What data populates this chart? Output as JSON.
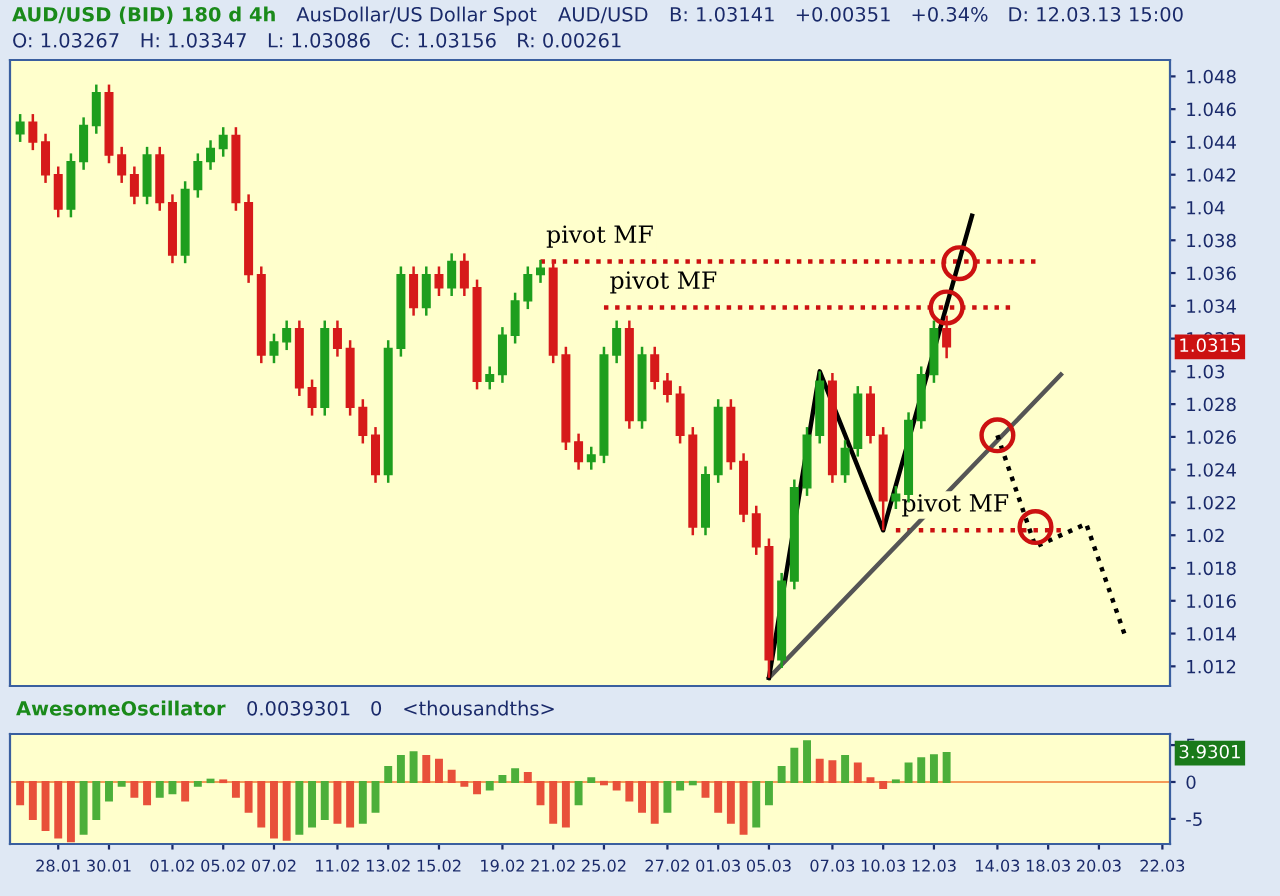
{
  "chart_data": [
    {
      "type": "candlestick",
      "title": "AUD/USD (BID) 180 d 4h",
      "subtitle": "AusDollar/US Dollar Spot",
      "categories": [
        null,
        null,
        null,
        "28.01",
        null,
        null,
        null,
        "30.01",
        null,
        null,
        null,
        null,
        "01.02",
        null,
        null,
        null,
        "05.02",
        null,
        null,
        null,
        "07.02",
        null,
        null,
        null,
        null,
        "11.02",
        null,
        null,
        null,
        "13.02",
        null,
        null,
        null,
        "15.02",
        null,
        null,
        null,
        null,
        "19.02",
        null,
        null,
        null,
        "21.02",
        null,
        null,
        null,
        "25.02",
        null,
        null,
        null,
        null,
        "27.02",
        null,
        null,
        null,
        "01.03",
        null,
        null,
        null,
        "05.03",
        null,
        null,
        null,
        null,
        "07.03",
        null,
        null,
        null,
        "10.03",
        null,
        null,
        null,
        "12.03",
        null,
        null,
        null,
        null,
        "14.03",
        null,
        null,
        null,
        "18.03",
        null,
        null,
        null,
        "20.03",
        null,
        null,
        null,
        null,
        "22.03"
      ],
      "ohlc": [
        [
          1.0445,
          1.0457,
          1.044,
          1.0452
        ],
        [
          1.0452,
          1.0457,
          1.0435,
          1.044
        ],
        [
          1.044,
          1.0445,
          1.0415,
          1.042
        ],
        [
          1.042,
          1.0425,
          1.0394,
          1.0399
        ],
        [
          1.0399,
          1.0433,
          1.0394,
          1.0428
        ],
        [
          1.0428,
          1.0455,
          1.0423,
          1.045
        ],
        [
          1.045,
          1.0475,
          1.0445,
          1.047
        ],
        [
          1.047,
          1.0475,
          1.0427,
          1.0432
        ],
        [
          1.0432,
          1.0437,
          1.0415,
          1.042
        ],
        [
          1.042,
          1.0425,
          1.0402,
          1.0407
        ],
        [
          1.0407,
          1.0437,
          1.0402,
          1.0432
        ],
        [
          1.0432,
          1.0437,
          1.0398,
          1.0403
        ],
        [
          1.0403,
          1.0408,
          1.0366,
          1.0371
        ],
        [
          1.0371,
          1.0416,
          1.0366,
          1.0411
        ],
        [
          1.0411,
          1.0433,
          1.0406,
          1.0428
        ],
        [
          1.0428,
          1.0441,
          1.0423,
          1.0436
        ],
        [
          1.0436,
          1.0449,
          1.0431,
          1.0444
        ],
        [
          1.0444,
          1.0449,
          1.0398,
          1.0403
        ],
        [
          1.0403,
          1.0408,
          1.0354,
          1.0359
        ],
        [
          1.0359,
          1.0364,
          1.0305,
          1.031
        ],
        [
          1.031,
          1.0323,
          1.0305,
          1.0318
        ],
        [
          1.0318,
          1.0331,
          1.0313,
          1.0326
        ],
        [
          1.0326,
          1.0331,
          1.0285,
          1.029
        ],
        [
          1.029,
          1.0295,
          1.0273,
          1.0278
        ],
        [
          1.0278,
          1.0331,
          1.0273,
          1.0326
        ],
        [
          1.0326,
          1.0331,
          1.0309,
          1.0314
        ],
        [
          1.0314,
          1.0319,
          1.0273,
          1.0278
        ],
        [
          1.0278,
          1.0283,
          1.0256,
          1.0261
        ],
        [
          1.0261,
          1.0266,
          1.0232,
          1.0237
        ],
        [
          1.0237,
          1.0319,
          1.0232,
          1.0314
        ],
        [
          1.0314,
          1.0364,
          1.0309,
          1.0359
        ],
        [
          1.0359,
          1.0364,
          1.0334,
          1.0339
        ],
        [
          1.0339,
          1.0364,
          1.0334,
          1.0359
        ],
        [
          1.0359,
          1.0364,
          1.0346,
          1.0351
        ],
        [
          1.0351,
          1.0372,
          1.0346,
          1.0367
        ],
        [
          1.0367,
          1.0372,
          1.0346,
          1.0351
        ],
        [
          1.0351,
          1.0356,
          1.0289,
          1.0294
        ],
        [
          1.0294,
          1.0303,
          1.0289,
          1.0298
        ],
        [
          1.0298,
          1.0327,
          1.0293,
          1.0322
        ],
        [
          1.0322,
          1.0348,
          1.0317,
          1.0343
        ],
        [
          1.0343,
          1.0364,
          1.0338,
          1.0359
        ],
        [
          1.0359,
          1.0368,
          1.0354,
          1.0363
        ],
        [
          1.0363,
          1.0368,
          1.0305,
          1.031
        ],
        [
          1.031,
          1.0315,
          1.0252,
          1.0257
        ],
        [
          1.0257,
          1.0262,
          1.024,
          1.0245
        ],
        [
          1.0245,
          1.0254,
          1.024,
          1.0249
        ],
        [
          1.0249,
          1.0315,
          1.0244,
          1.031
        ],
        [
          1.031,
          1.0331,
          1.0305,
          1.0326
        ],
        [
          1.0326,
          1.0331,
          1.0265,
          1.027
        ],
        [
          1.027,
          1.0315,
          1.0265,
          1.031
        ],
        [
          1.031,
          1.0315,
          1.0289,
          1.0294
        ],
        [
          1.0294,
          1.0299,
          1.0281,
          1.0286
        ],
        [
          1.0286,
          1.0291,
          1.0256,
          1.0261
        ],
        [
          1.0261,
          1.0266,
          1.02,
          1.0205
        ],
        [
          1.0205,
          1.0242,
          1.02,
          1.0237
        ],
        [
          1.0237,
          1.0283,
          1.0232,
          1.0278
        ],
        [
          1.0278,
          1.0283,
          1.024,
          1.0245
        ],
        [
          1.0245,
          1.025,
          1.0208,
          1.0213
        ],
        [
          1.0213,
          1.0218,
          1.0188,
          1.0193
        ],
        [
          1.0193,
          1.0198,
          1.0113,
          1.0124
        ],
        [
          1.0124,
          1.0177,
          1.0119,
          1.0172
        ],
        [
          1.0172,
          1.0234,
          1.0167,
          1.0229
        ],
        [
          1.0229,
          1.0266,
          1.0224,
          1.0261
        ],
        [
          1.0261,
          1.03,
          1.0256,
          1.0294
        ],
        [
          1.0294,
          1.0299,
          1.0232,
          1.0237
        ],
        [
          1.0237,
          1.0258,
          1.0232,
          1.0253
        ],
        [
          1.0253,
          1.0291,
          1.0248,
          1.0286
        ],
        [
          1.0286,
          1.0291,
          1.0256,
          1.0261
        ],
        [
          1.0261,
          1.0266,
          1.0203,
          1.0221
        ],
        [
          1.0221,
          1.023,
          1.0216,
          1.0225
        ],
        [
          1.0225,
          1.0275,
          1.022,
          1.027
        ],
        [
          1.027,
          1.0303,
          1.0265,
          1.0298
        ],
        [
          1.0298,
          1.0331,
          1.0293,
          1.0326
        ],
        [
          1.0326,
          1.0334,
          1.0308,
          1.0315
        ],
        null,
        null,
        null,
        null,
        null,
        null,
        null,
        null,
        null,
        null,
        null,
        null,
        null,
        null,
        null,
        null,
        null
      ],
      "colors": [
        "#1e9e1e",
        "#d61a1a",
        "#d61a1a",
        "#d61a1a",
        "#1e9e1e",
        "#1e9e1e",
        "#1e9e1e",
        "#d61a1a",
        "#d61a1a",
        "#d61a1a",
        "#1e9e1e",
        "#d61a1a",
        "#d61a1a",
        "#1e9e1e",
        "#1e9e1e",
        "#1e9e1e",
        "#1e9e1e",
        "#d61a1a",
        "#d61a1a",
        "#d61a1a",
        "#1e9e1e",
        "#1e9e1e",
        "#d61a1a",
        "#d61a1a",
        "#1e9e1e",
        "#d61a1a",
        "#d61a1a",
        "#d61a1a",
        "#d61a1a",
        "#1e9e1e",
        "#1e9e1e",
        "#d61a1a",
        "#1e9e1e",
        "#d61a1a",
        "#1e9e1e",
        "#d61a1a",
        "#d61a1a",
        "#1e9e1e",
        "#1e9e1e",
        "#1e9e1e",
        "#1e9e1e",
        "#1e9e1e",
        "#d61a1a",
        "#d61a1a",
        "#d61a1a",
        "#1e9e1e",
        "#1e9e1e",
        "#1e9e1e",
        "#d61a1a",
        "#1e9e1e",
        "#d61a1a",
        "#d61a1a",
        "#d61a1a",
        "#d61a1a",
        "#1e9e1e",
        "#1e9e1e",
        "#d61a1a",
        "#d61a1a",
        "#d61a1a",
        "#d61a1a",
        "#1e9e1e",
        "#1e9e1e",
        "#1e9e1e",
        "#1e9e1e",
        "#d61a1a",
        "#1e9e1e",
        "#1e9e1e",
        "#d61a1a",
        "#d61a1a",
        "#1e9e1e",
        "#1e9e1e",
        "#1e9e1e",
        "#1e9e1e",
        "#d61a1a",
        null,
        null,
        null,
        null,
        null,
        null,
        null,
        null,
        null,
        null,
        null,
        null,
        null,
        null,
        null,
        null,
        null
      ],
      "series": [
        {
          "type": "line",
          "name": "pivot MF",
          "color": "#cc1111",
          "line_style": "dotted",
          "values": [
            null,
            null,
            null,
            null,
            null,
            null,
            null,
            null,
            null,
            null,
            null,
            null,
            null,
            null,
            null,
            null,
            null,
            null,
            null,
            null,
            null,
            null,
            null,
            null,
            null,
            null,
            null,
            null,
            null,
            null,
            null,
            null,
            null,
            null,
            null,
            null,
            null,
            null,
            null,
            null,
            null,
            1.0367,
            null,
            null,
            null,
            null,
            null,
            null,
            null,
            null,
            null,
            null,
            null,
            null,
            null,
            null,
            null,
            null,
            null,
            null,
            null,
            null,
            null,
            null,
            null,
            null,
            null,
            null,
            null,
            null,
            null,
            null,
            null,
            null,
            null,
            null,
            null,
            null,
            null,
            null,
            1.0367,
            null,
            null,
            null,
            null,
            null,
            null,
            null,
            null,
            null,
            null
          ]
        },
        {
          "type": "line",
          "name": "pivot MF",
          "color": "#cc1111",
          "line_style": "dotted",
          "values": [
            null,
            null,
            null,
            null,
            null,
            null,
            null,
            null,
            null,
            null,
            null,
            null,
            null,
            null,
            null,
            null,
            null,
            null,
            null,
            null,
            null,
            null,
            null,
            null,
            null,
            null,
            null,
            null,
            null,
            null,
            null,
            null,
            null,
            null,
            null,
            null,
            null,
            null,
            null,
            null,
            null,
            null,
            null,
            null,
            null,
            null,
            1.0339,
            null,
            null,
            null,
            null,
            null,
            null,
            null,
            null,
            null,
            null,
            null,
            null,
            null,
            null,
            null,
            null,
            null,
            null,
            null,
            null,
            null,
            null,
            null,
            null,
            null,
            null,
            null,
            null,
            null,
            null,
            null,
            1.0339,
            null,
            null,
            null,
            null,
            null,
            null,
            null,
            null,
            null,
            null,
            null,
            null
          ]
        },
        {
          "type": "line",
          "name": "pivot MF",
          "color": "#cc1111",
          "line_style": "dotted",
          "values": [
            null,
            null,
            null,
            null,
            null,
            null,
            null,
            null,
            null,
            null,
            null,
            null,
            null,
            null,
            null,
            null,
            null,
            null,
            null,
            null,
            null,
            null,
            null,
            null,
            null,
            null,
            null,
            null,
            null,
            null,
            null,
            null,
            null,
            null,
            null,
            null,
            null,
            null,
            null,
            null,
            null,
            null,
            null,
            null,
            null,
            null,
            null,
            null,
            null,
            null,
            null,
            null,
            null,
            null,
            null,
            null,
            null,
            null,
            null,
            null,
            null,
            null,
            null,
            null,
            null,
            null,
            null,
            null,
            null,
            1.0203,
            null,
            null,
            null,
            null,
            null,
            null,
            null,
            null,
            null,
            null,
            null,
            null,
            1.0203,
            null,
            null,
            null,
            null,
            null,
            null,
            null,
            null
          ]
        },
        {
          "type": "line",
          "color": "#555555",
          "line_style": "solid",
          "values": [
            null,
            null,
            null,
            null,
            null,
            null,
            null,
            null,
            null,
            null,
            null,
            null,
            null,
            null,
            null,
            null,
            null,
            null,
            null,
            null,
            null,
            null,
            null,
            null,
            null,
            null,
            null,
            null,
            null,
            null,
            null,
            null,
            null,
            null,
            null,
            null,
            null,
            null,
            null,
            null,
            null,
            null,
            null,
            null,
            null,
            null,
            null,
            null,
            null,
            null,
            null,
            null,
            null,
            null,
            null,
            null,
            null,
            null,
            null,
            1.0113,
            null,
            null,
            null,
            null,
            null,
            null,
            null,
            null,
            null,
            null,
            null,
            null,
            null,
            null,
            null,
            null,
            null,
            null,
            null,
            null,
            null,
            null,
            1.0298,
            null,
            null,
            null,
            null,
            null,
            null,
            null,
            null
          ]
        },
        {
          "type": "line",
          "color": "#000000",
          "line_style": "solid",
          "values": [
            null,
            null,
            null,
            null,
            null,
            null,
            null,
            null,
            null,
            null,
            null,
            null,
            null,
            null,
            null,
            null,
            null,
            null,
            null,
            null,
            null,
            null,
            null,
            null,
            null,
            null,
            null,
            null,
            null,
            null,
            null,
            null,
            null,
            null,
            null,
            null,
            null,
            null,
            null,
            null,
            null,
            null,
            null,
            null,
            null,
            null,
            null,
            null,
            null,
            null,
            null,
            null,
            null,
            null,
            null,
            null,
            null,
            null,
            null,
            1.0113,
            null,
            null,
            null,
            1.03,
            null,
            null,
            null,
            null,
            1.0203,
            null,
            null,
            null,
            null,
            null,
            null,
            1.0395,
            null,
            null,
            null,
            null,
            null,
            null,
            null,
            null,
            null,
            null,
            null,
            null,
            null,
            null,
            null
          ]
        },
        {
          "type": "line",
          "color": "#000000",
          "line_style": "dotted",
          "values": [
            null,
            null,
            null,
            null,
            null,
            null,
            null,
            null,
            null,
            null,
            null,
            null,
            null,
            null,
            null,
            null,
            null,
            null,
            null,
            null,
            null,
            null,
            null,
            null,
            null,
            null,
            null,
            null,
            null,
            null,
            null,
            null,
            null,
            null,
            null,
            null,
            null,
            null,
            null,
            null,
            null,
            null,
            null,
            null,
            null,
            null,
            null,
            null,
            null,
            null,
            null,
            null,
            null,
            null,
            null,
            null,
            null,
            null,
            null,
            null,
            null,
            null,
            null,
            null,
            null,
            null,
            null,
            null,
            null,
            null,
            null,
            null,
            null,
            null,
            null,
            null,
            null,
            1.0261,
            null,
            null,
            1.0193,
            null,
            null,
            null,
            1.0207,
            null,
            null,
            1.014,
            null,
            null,
            null
          ]
        },
        {
          "type": "scatter",
          "color": "#cc1111",
          "marker": "circle",
          "values": [
            null,
            null,
            null,
            null,
            null,
            null,
            null,
            null,
            null,
            null,
            null,
            null,
            null,
            null,
            null,
            null,
            null,
            null,
            null,
            null,
            null,
            null,
            null,
            null,
            null,
            null,
            null,
            null,
            null,
            null,
            null,
            null,
            null,
            null,
            null,
            null,
            null,
            null,
            null,
            null,
            null,
            null,
            null,
            null,
            null,
            null,
            null,
            null,
            null,
            null,
            null,
            null,
            null,
            null,
            null,
            null,
            null,
            null,
            null,
            null,
            null,
            null,
            null,
            null,
            null,
            null,
            null,
            null,
            null,
            null,
            null,
            null,
            null,
            1.0339,
            1.0366,
            null,
            null,
            1.0261,
            null,
            null,
            1.0205,
            null,
            null,
            null,
            null,
            null,
            null,
            null,
            null,
            null,
            null
          ]
        }
      ],
      "ylim": [
        1.0108,
        1.049
      ],
      "yticks": [
        1.012,
        1.014,
        1.016,
        1.018,
        1.02,
        1.022,
        1.024,
        1.026,
        1.028,
        1.03,
        1.032,
        1.034,
        1.036,
        1.038,
        1.04,
        1.042,
        1.044,
        1.046,
        1.048
      ],
      "tick_labels": "y",
      "annotations": [
        "AUD/USD",
        "B: 1.03141",
        "+0.00351",
        "+0.34%",
        "D: 12.03.13 15:00",
        "O: 1.03267",
        "H: 1.03347",
        "L: 1.03086",
        "C: 1.03156",
        "R: 0.00261",
        {
          "text": "1.0315",
          "y": 1.0315
        }
      ]
    },
    {
      "type": "bar",
      "title": "AwesomeOscillator",
      "categories": [
        null,
        null,
        null,
        "28.01",
        null,
        null,
        null,
        "30.01",
        null,
        null,
        null,
        null,
        "01.02",
        null,
        null,
        null,
        "05.02",
        null,
        null,
        null,
        "07.02",
        null,
        null,
        null,
        null,
        "11.02",
        null,
        null,
        null,
        "13.02",
        null,
        null,
        null,
        "15.02",
        null,
        null,
        null,
        null,
        "19.02",
        null,
        null,
        null,
        "21.02",
        null,
        null,
        null,
        "25.02",
        null,
        null,
        null,
        null,
        "27.02",
        null,
        null,
        null,
        "01.03",
        null,
        null,
        null,
        "05.03",
        null,
        null,
        null,
        null,
        "07.03",
        null,
        null,
        null,
        "10.03",
        null,
        null,
        null,
        "12.03",
        null,
        null,
        null,
        null,
        "14.03",
        null,
        null,
        null,
        "18.03",
        null,
        null,
        null,
        "20.03",
        null,
        null,
        null,
        null,
        "22.03"
      ],
      "values": [
        -3,
        -5,
        -6.5,
        -7.5,
        -8,
        -7,
        -5,
        -2.5,
        -0.5,
        -2,
        -3,
        -2,
        -1.5,
        -2.5,
        -0.5,
        0.3,
        0.2,
        -2,
        -4,
        -6,
        -7.5,
        -7.8,
        -7,
        -6,
        -5,
        -5.5,
        -6,
        -5.5,
        -4,
        2,
        3.5,
        4,
        3.5,
        3,
        1.5,
        -0.5,
        -1.5,
        -1,
        0.8,
        1.7,
        1.2,
        -3,
        -5.5,
        -6,
        -3,
        0.5,
        -0.3,
        -1,
        -2.5,
        -4,
        -5.5,
        -4,
        -1,
        -0.3,
        -2,
        -4,
        -5.5,
        -7,
        -6,
        -3,
        2,
        4.5,
        5.5,
        3,
        2.8,
        3.5,
        2.5,
        0.5,
        -0.8,
        0.2,
        2.5,
        3.2,
        3.6,
        3.9,
        null,
        null,
        null,
        null,
        null,
        null,
        null,
        null,
        null,
        null,
        null,
        null,
        null,
        null,
        null,
        null,
        null
      ],
      "colors": [
        "#e8503a",
        "#e8503a",
        "#e8503a",
        "#e8503a",
        "#e8503a",
        "#4caf3a",
        "#4caf3a",
        "#4caf3a",
        "#4caf3a",
        "#e8503a",
        "#e8503a",
        "#4caf3a",
        "#4caf3a",
        "#e8503a",
        "#4caf3a",
        "#4caf3a",
        "#e8503a",
        "#e8503a",
        "#e8503a",
        "#e8503a",
        "#e8503a",
        "#e8503a",
        "#4caf3a",
        "#4caf3a",
        "#4caf3a",
        "#e8503a",
        "#e8503a",
        "#4caf3a",
        "#4caf3a",
        "#4caf3a",
        "#4caf3a",
        "#4caf3a",
        "#e8503a",
        "#e8503a",
        "#e8503a",
        "#e8503a",
        "#e8503a",
        "#4caf3a",
        "#4caf3a",
        "#4caf3a",
        "#e8503a",
        "#e8503a",
        "#e8503a",
        "#e8503a",
        "#4caf3a",
        "#4caf3a",
        "#e8503a",
        "#e8503a",
        "#e8503a",
        "#e8503a",
        "#e8503a",
        "#4caf3a",
        "#4caf3a",
        "#4caf3a",
        "#e8503a",
        "#e8503a",
        "#e8503a",
        "#e8503a",
        "#4caf3a",
        "#4caf3a",
        "#4caf3a",
        "#4caf3a",
        "#4caf3a",
        "#e8503a",
        "#e8503a",
        "#4caf3a",
        "#e8503a",
        "#e8503a",
        "#e8503a",
        "#4caf3a",
        "#4caf3a",
        "#4caf3a",
        "#4caf3a",
        "#4caf3a",
        null,
        null,
        null,
        null,
        null,
        null,
        null,
        null,
        null,
        null,
        null,
        null,
        null,
        null,
        null,
        null,
        null
      ],
      "ylim": [
        -8.4,
        6.5
      ],
      "yticks": [
        -5,
        0,
        5
      ],
      "ref_lines": [
        {
          "axis": "y",
          "value": 0,
          "color": "#f07830"
        }
      ],
      "annotations": [
        "0.0039301",
        "0",
        "<thousandths>",
        {
          "text": "3.9301",
          "y": 3.9
        }
      ]
    }
  ]
}
